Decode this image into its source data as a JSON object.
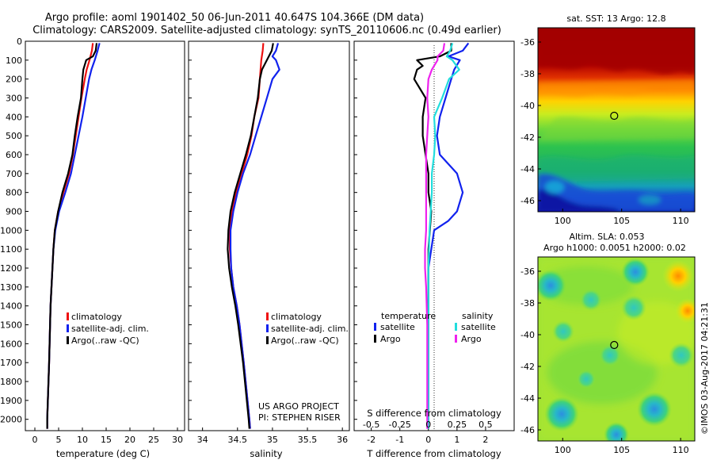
{
  "title": {
    "line1": "Argo profile: aoml 1901402_50 06-Jun-2011 40.647S 104.366E (DM data)",
    "line2": "Climatology: CARS2009. Satellite-adjusted climatology: synTS_20110606.nc (0.49d earlier)"
  },
  "colors": {
    "climatology": "#ee1111",
    "satellite": "#1122ee",
    "argo": "#000000",
    "salinity_satellite": "#22dddd",
    "salinity_argo": "#ee22ee"
  },
  "depth_axis": {
    "ticks": [
      "0",
      "100",
      "200",
      "300",
      "400",
      "500",
      "600",
      "700",
      "800",
      "900",
      "1000",
      "1100",
      "1200",
      "1300",
      "1400",
      "1500",
      "1600",
      "1700",
      "1800",
      "1900",
      "2000"
    ]
  },
  "chart_data": [
    {
      "type": "line",
      "name": "temperature",
      "xlabel": "temperature (deg C)",
      "xlim": [
        -2,
        31.5
      ],
      "ylim": [
        2060,
        0
      ],
      "xticks": [
        "0",
        "5",
        "10",
        "15",
        "20",
        "25",
        "30"
      ],
      "xtick_values": [
        0,
        5,
        10,
        15,
        20,
        25,
        30
      ],
      "legend": [
        "climatology",
        "satellite-adj. clim.",
        "Argo(..raw -QC)"
      ],
      "series": [
        {
          "name": "climatology",
          "depth": [
            10,
            50,
            100,
            150,
            200,
            300,
            400,
            500,
            600,
            700,
            800,
            900,
            1000,
            1100,
            1200,
            1300,
            1400,
            1500,
            1700,
            2000,
            2050
          ],
          "values": [
            12.2,
            12.0,
            11.5,
            10.9,
            10.5,
            9.8,
            9.2,
            8.6,
            8.0,
            7.2,
            6.0,
            4.9,
            4.2,
            3.9,
            3.7,
            3.5,
            3.3,
            3.2,
            3.0,
            2.6,
            2.6
          ]
        },
        {
          "name": "satellite-adj. clim.",
          "depth": [
            10,
            50,
            100,
            150,
            200,
            300,
            400,
            500,
            600,
            700,
            800,
            900,
            1000,
            1100,
            1200,
            1300,
            1400,
            1500,
            1700,
            2000,
            2050
          ],
          "values": [
            13.6,
            13.2,
            12.6,
            11.9,
            11.4,
            10.7,
            10.0,
            9.2,
            8.4,
            7.6,
            6.4,
            5.1,
            4.3,
            3.9,
            3.7,
            3.5,
            3.3,
            3.2,
            3.0,
            2.6,
            2.6
          ]
        },
        {
          "name": "Argo(..raw -QC)",
          "depth": [
            10,
            50,
            80,
            100,
            150,
            200,
            300,
            400,
            500,
            600,
            700,
            800,
            900,
            1000,
            1100,
            1200,
            1300,
            1400,
            1500,
            1700,
            2000,
            2050
          ],
          "values": [
            13.0,
            12.8,
            12.2,
            10.8,
            10.2,
            10.0,
            9.7,
            9.0,
            8.4,
            7.9,
            7.0,
            5.8,
            4.9,
            4.2,
            3.9,
            3.7,
            3.5,
            3.3,
            3.2,
            3.0,
            2.6,
            2.6
          ]
        }
      ]
    },
    {
      "type": "line",
      "name": "salinity",
      "xlabel": "salinity",
      "xlim": [
        33.8,
        36.1
      ],
      "ylim": [
        2060,
        0
      ],
      "xticks": [
        "34",
        "34.5",
        "35",
        "35.5",
        "36"
      ],
      "xtick_values": [
        34,
        34.5,
        35,
        35.5,
        36
      ],
      "legend": [
        "climatology",
        "satellite-adj. clim.",
        "Argo(..raw -QC)"
      ],
      "notes": [
        "US ARGO PROJECT",
        "PI: STEPHEN RISER"
      ],
      "series": [
        {
          "name": "climatology",
          "depth": [
            10,
            50,
            100,
            150,
            200,
            300,
            400,
            500,
            600,
            700,
            800,
            900,
            1000,
            1100,
            1200,
            1300,
            1400,
            1500,
            1700,
            2000,
            2050
          ],
          "values": [
            34.87,
            34.86,
            34.84,
            34.83,
            34.82,
            34.8,
            34.74,
            34.7,
            34.64,
            34.56,
            34.48,
            34.42,
            34.39,
            34.39,
            34.41,
            34.44,
            34.49,
            34.53,
            34.59,
            34.67,
            34.68
          ]
        },
        {
          "name": "satellite-adj. clim.",
          "depth": [
            10,
            50,
            80,
            100,
            150,
            200,
            300,
            400,
            500,
            600,
            700,
            800,
            900,
            1000,
            1100,
            1200,
            1300,
            1400,
            1500,
            1700,
            2000,
            2050
          ],
          "values": [
            35.08,
            35.05,
            35.0,
            35.05,
            35.1,
            35.0,
            34.92,
            34.84,
            34.76,
            34.68,
            34.58,
            34.5,
            34.44,
            34.4,
            34.4,
            34.41,
            34.44,
            34.49,
            34.53,
            34.59,
            34.67,
            34.68
          ]
        },
        {
          "name": "Argo(..raw -QC)",
          "depth": [
            10,
            50,
            100,
            150,
            200,
            300,
            400,
            500,
            600,
            700,
            800,
            900,
            1000,
            1100,
            1200,
            1300,
            1400,
            1500,
            1700,
            2000,
            2050
          ],
          "values": [
            35.01,
            34.99,
            34.92,
            34.85,
            34.82,
            34.79,
            34.74,
            34.69,
            34.62,
            34.54,
            34.46,
            34.4,
            34.37,
            34.36,
            34.38,
            34.42,
            34.47,
            34.51,
            34.58,
            34.66,
            34.67
          ]
        }
      ]
    },
    {
      "type": "line",
      "name": "difference",
      "xlabel": "T difference from climatology",
      "xlabel2": "S difference from climatology",
      "xlim": [
        -2.6,
        3.0
      ],
      "ylim": [
        2060,
        0
      ],
      "xticks": [
        "-2",
        "-1",
        "0",
        "1",
        "2"
      ],
      "xtick_values": [
        -2,
        -1,
        0,
        1,
        2
      ],
      "sticks": [
        "-0.5",
        "-0.25",
        "0",
        "0.25",
        "0.5"
      ],
      "stick_values": [
        -2,
        -1,
        0,
        1,
        2
      ],
      "legend_headers": [
        "temperature",
        "salinity"
      ],
      "legend": [
        "satellite",
        "Argo",
        "satellite",
        "Argo"
      ],
      "series": [
        {
          "name": "temperature satellite",
          "depth": [
            10,
            50,
            80,
            100,
            150,
            200,
            300,
            400,
            500,
            600,
            700,
            800,
            850,
            900,
            950,
            1000,
            1100,
            1200,
            1300,
            1500,
            1700,
            2000,
            2050
          ],
          "values": [
            1.4,
            1.2,
            0.7,
            1.1,
            0.9,
            0.8,
            0.6,
            0.4,
            0.3,
            0.4,
            1.0,
            1.2,
            1.1,
            1.0,
            0.7,
            0.2,
            0.1,
            0.0,
            0.0,
            0.0,
            0.0,
            0.0,
            0.0
          ]
        },
        {
          "name": "temperature Argo",
          "depth": [
            10,
            50,
            80,
            100,
            130,
            150,
            200,
            300,
            400,
            500,
            600,
            700,
            800,
            900,
            1000,
            1100,
            1200,
            1300,
            1500,
            1700,
            2000,
            2050
          ],
          "values": [
            0.8,
            0.8,
            0.4,
            -0.4,
            -0.2,
            -0.4,
            -0.5,
            -0.1,
            -0.2,
            -0.2,
            -0.1,
            0.0,
            0.0,
            0.1,
            0.05,
            0.0,
            0.0,
            0.0,
            0.0,
            0.0,
            0.0,
            0.0
          ]
        },
        {
          "name": "salinity satellite",
          "depth": [
            10,
            50,
            80,
            100,
            150,
            200,
            300,
            400,
            500,
            600,
            700,
            800,
            900,
            1000,
            1200,
            1500,
            1700,
            2000,
            2050
          ],
          "values": [
            0.84,
            0.76,
            0.64,
            0.84,
            1.08,
            0.72,
            0.48,
            0.2,
            0.24,
            0.2,
            0.12,
            0.12,
            0.08,
            0.04,
            0.0,
            0.0,
            0.0,
            0.0,
            0.0
          ]
        },
        {
          "name": "salinity Argo",
          "depth": [
            10,
            50,
            80,
            100,
            150,
            200,
            300,
            400,
            500,
            600,
            700,
            800,
            900,
            1000,
            1100,
            1200,
            1300,
            1500,
            1700,
            2000,
            2050
          ],
          "values": [
            0.56,
            0.52,
            0.32,
            0.32,
            0.12,
            0.0,
            -0.04,
            0.0,
            -0.04,
            -0.08,
            -0.08,
            -0.08,
            -0.08,
            -0.08,
            -0.12,
            -0.12,
            -0.08,
            -0.04,
            -0.04,
            -0.04,
            -0.04
          ]
        }
      ]
    },
    {
      "type": "heatmap",
      "name": "sst_map",
      "title": "sat. SST: 13 Argo: 12.8",
      "xticks": [
        "100",
        "105",
        "110"
      ],
      "xtick_values": [
        100,
        105,
        110
      ],
      "yticks": [
        "-36",
        "-38",
        "-40",
        "-42",
        "-44",
        "-46"
      ],
      "ytick_values": [
        -36,
        -38,
        -40,
        -42,
        -44,
        -46
      ],
      "xlim": [
        97.9,
        111.2
      ],
      "ylim": [
        -46.7,
        -35.1
      ],
      "marker": [
        104.37,
        -40.65
      ]
    },
    {
      "type": "heatmap",
      "name": "sla_map",
      "title": "Altim. SLA: 0.053",
      "subtitle": "Argo h1000: 0.0051 h2000: 0.02",
      "xticks": [
        "100",
        "105",
        "110"
      ],
      "xtick_values": [
        100,
        105,
        110
      ],
      "yticks": [
        "-36",
        "-38",
        "-40",
        "-42",
        "-44",
        "-46"
      ],
      "ytick_values": [
        -36,
        -38,
        -40,
        -42,
        -44,
        -46
      ],
      "xlim": [
        97.9,
        111.2
      ],
      "ylim": [
        -46.7,
        -35.1
      ],
      "marker": [
        104.37,
        -40.65
      ]
    }
  ],
  "footer": {
    "credit": "©IMOS 03-Aug-2017 04:21:31"
  }
}
